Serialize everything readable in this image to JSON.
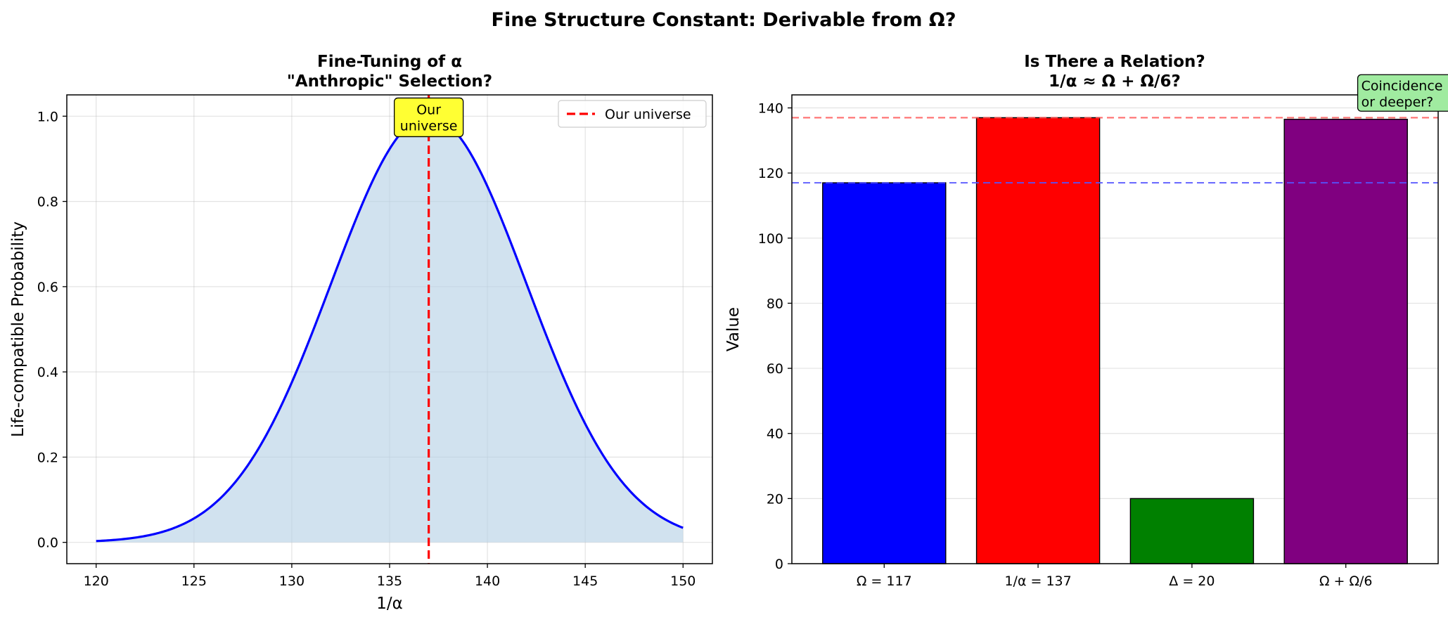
{
  "title": "Fine Structure Constant: Derivable from Ω?",
  "colors": {
    "curve": "#0000ff",
    "fill": "#b8d2e6",
    "vline": "#ff0000",
    "annotation_yellow": "#ffff33",
    "annotation_green": "#a0eba0",
    "ref_red": "#ff5555",
    "ref_blue": "#5555ff"
  },
  "chart_data": [
    {
      "type": "area",
      "title_line1": "Fine-Tuning of α",
      "title_line2": "\"Anthropic\" Selection?",
      "xlabel": "1/α",
      "ylabel": "Life-compatible Probability",
      "xlim": [
        118.5,
        151.5
      ],
      "ylim": [
        -0.05,
        1.05
      ],
      "xticks": [
        120,
        125,
        130,
        135,
        140,
        145,
        150
      ],
      "yticks": [
        0.0,
        0.2,
        0.4,
        0.6,
        0.8,
        1.0
      ],
      "ytick_labels": [
        "0.0",
        "0.2",
        "0.4",
        "0.6",
        "0.8",
        "1.0"
      ],
      "curve": {
        "type": "gaussian",
        "x_min": 120,
        "x_max": 150,
        "center": 137,
        "sigma": 5,
        "peak": 1.0
      },
      "vline": {
        "x": 137,
        "legend": "Our universe"
      },
      "annotation": {
        "line1": "Our",
        "line2": "universe",
        "x": 137,
        "y": 0.98
      },
      "grid": true,
      "legend_position": "upper right"
    },
    {
      "type": "bar",
      "title_line1": "Is There a Relation?",
      "title_line2": "1/α ≈ Ω + Ω/6?",
      "xlabel": "",
      "ylabel": "Value",
      "categories": [
        "Ω = 117",
        "1/α = 137",
        "Δ = 20",
        "Ω + Ω/6"
      ],
      "values": [
        117,
        137,
        20,
        136.5
      ],
      "bar_colors": [
        "#0000ff",
        "#ff0000",
        "#008000",
        "#800080"
      ],
      "ylim": [
        0,
        144
      ],
      "yticks": [
        0,
        20,
        40,
        60,
        80,
        100,
        120,
        140
      ],
      "hlines": [
        {
          "y": 137,
          "color": "#ff5555"
        },
        {
          "y": 117,
          "color": "#5555ff"
        }
      ],
      "annotation": {
        "line1": "Coincidence",
        "line2": "or deeper?",
        "x": 3.1,
        "y": 142
      },
      "grid": true
    }
  ]
}
